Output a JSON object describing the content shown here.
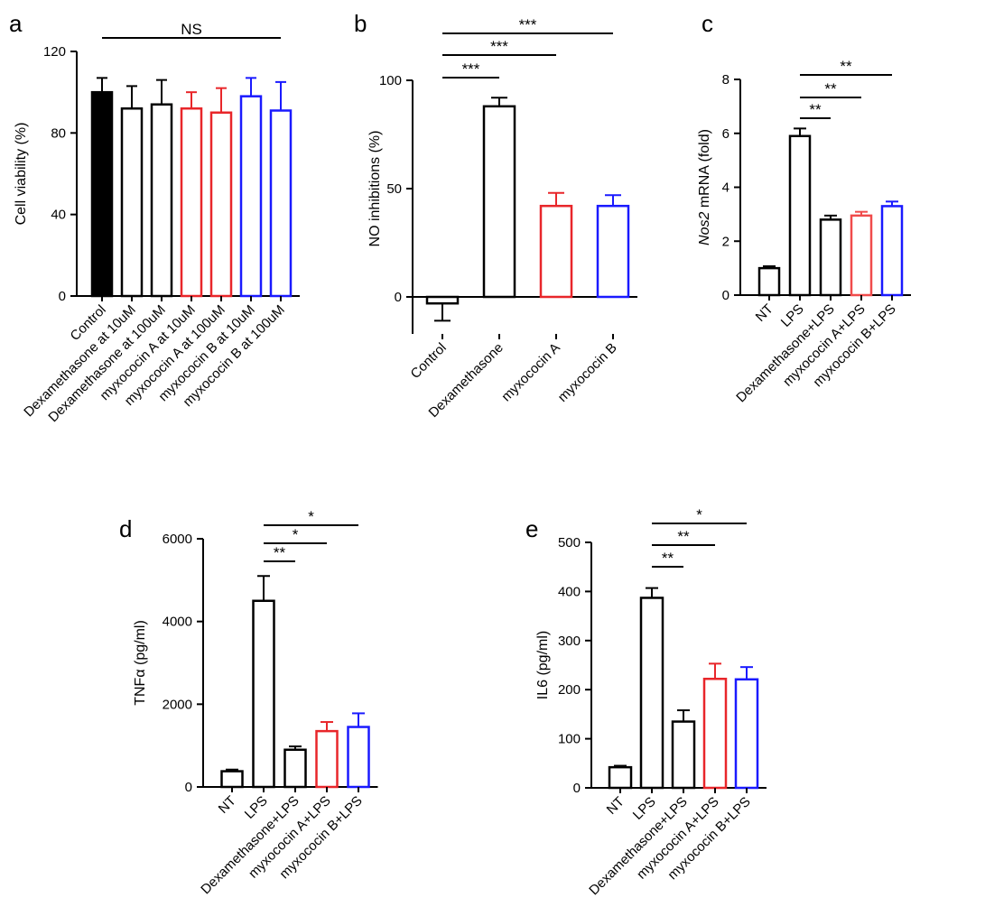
{
  "chart_data": [
    {
      "type": "bar",
      "panel": "a",
      "ylabel": "Cell viability (%)",
      "ylim": [
        0,
        120
      ],
      "yticks": [
        0,
        40,
        80,
        120
      ],
      "categories": [
        "Control",
        "Dexamethasone at 10uM",
        "Dexamethasone at 100uM",
        "myxococin A at 10uM",
        "myxococin A at 100uM",
        "myxococin B at 10uM",
        "myxococin B at 100uM"
      ],
      "values": [
        100,
        92,
        94,
        92,
        90,
        98,
        91
      ],
      "errors": [
        7,
        11,
        12,
        8,
        12,
        9,
        14
      ],
      "colors": [
        "#000000",
        "#000000",
        "#000000",
        "#e8262a",
        "#e8262a",
        "#1a1aff",
        "#1a1aff"
      ],
      "filled": [
        true,
        false,
        false,
        false,
        false,
        false,
        false
      ],
      "significance": [
        {
          "from": 0,
          "to": 6,
          "label": "NS"
        }
      ]
    },
    {
      "type": "bar",
      "panel": "b",
      "ylabel": "NO inhibitions (%)",
      "ylim": [
        -15,
        105
      ],
      "yticks": [
        0,
        50,
        100
      ],
      "categories": [
        "Control",
        "Dexamethasone",
        "myxococin A",
        "myxococin B"
      ],
      "values": [
        -3,
        88,
        42,
        42
      ],
      "errors": [
        8,
        4,
        6,
        5
      ],
      "colors": [
        "#000000",
        "#000000",
        "#e8262a",
        "#1a1aff"
      ],
      "filled": [
        false,
        false,
        false,
        false
      ],
      "significance": [
        {
          "from": 0,
          "to": 1,
          "label": "***"
        },
        {
          "from": 0,
          "to": 2,
          "label": "***"
        },
        {
          "from": 0,
          "to": 3,
          "label": "***"
        }
      ]
    },
    {
      "type": "bar",
      "panel": "c",
      "ylabel_italic": "Nos2",
      "ylabel": " mRNA (fold)",
      "ylim": [
        0,
        8
      ],
      "yticks": [
        0,
        2,
        4,
        6,
        8
      ],
      "categories": [
        "NT",
        "LPS",
        "Dexamethasone+LPS",
        "myxococin A+LPS",
        "myxococin B+LPS"
      ],
      "values": [
        1.0,
        5.9,
        2.8,
        2.95,
        3.3
      ],
      "errors": [
        0.07,
        0.28,
        0.15,
        0.14,
        0.17
      ],
      "colors": [
        "#000000",
        "#000000",
        "#000000",
        "#f04b4b",
        "#1a1aff"
      ],
      "filled": [
        false,
        false,
        false,
        false,
        false
      ],
      "significance": [
        {
          "from": 1,
          "to": 2,
          "label": "**"
        },
        {
          "from": 1,
          "to": 3,
          "label": "**"
        },
        {
          "from": 1,
          "to": 4,
          "label": "**"
        }
      ]
    },
    {
      "type": "bar",
      "panel": "d",
      "ylabel": "TNFα (pg/ml)",
      "ylim": [
        0,
        6000
      ],
      "yticks": [
        0,
        2000,
        4000,
        6000
      ],
      "categories": [
        "NT",
        "LPS",
        "Dexamethasone+LPS",
        "myxococin A+LPS",
        "myxococin B+LPS"
      ],
      "values": [
        380,
        4500,
        900,
        1350,
        1450
      ],
      "errors": [
        40,
        600,
        80,
        220,
        330
      ],
      "colors": [
        "#000000",
        "#000000",
        "#000000",
        "#e8262a",
        "#1a1aff"
      ],
      "filled": [
        false,
        false,
        false,
        false,
        false
      ],
      "significance": [
        {
          "from": 1,
          "to": 2,
          "label": "**"
        },
        {
          "from": 1,
          "to": 3,
          "label": "*"
        },
        {
          "from": 1,
          "to": 4,
          "label": "*"
        }
      ]
    },
    {
      "type": "bar",
      "panel": "e",
      "ylabel": "IL6 (pg/ml)",
      "ylim": [
        0,
        500
      ],
      "yticks": [
        0,
        100,
        200,
        300,
        400,
        500
      ],
      "categories": [
        "NT",
        "LPS",
        "Dexamethasone+LPS",
        "myxococin A+LPS",
        "myxococin B+LPS"
      ],
      "values": [
        42,
        387,
        135,
        222,
        221
      ],
      "errors": [
        3,
        20,
        23,
        31,
        25
      ],
      "colors": [
        "#000000",
        "#000000",
        "#000000",
        "#e8262a",
        "#1a1aff"
      ],
      "filled": [
        false,
        false,
        false,
        false,
        false
      ],
      "significance": [
        {
          "from": 1,
          "to": 2,
          "label": "**"
        },
        {
          "from": 1,
          "to": 3,
          "label": "**"
        },
        {
          "from": 1,
          "to": 4,
          "label": "*"
        }
      ]
    }
  ]
}
